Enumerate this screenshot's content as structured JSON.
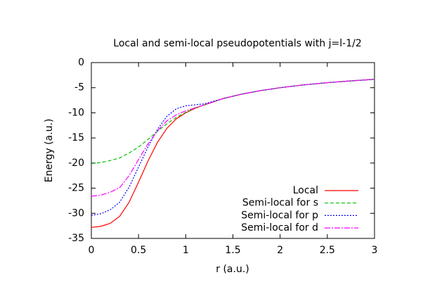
{
  "chart_data": {
    "type": "line",
    "title": "Local and semi-local pseudopotentials with j=l-1/2",
    "x_label": "r (a.u.)",
    "y_label": "Energy (a.u.)",
    "x": [
      0,
      0.1,
      0.2,
      0.3,
      0.4,
      0.5,
      0.6,
      0.7,
      0.8,
      0.9,
      1.0,
      1.1,
      1.2,
      1.4,
      1.6,
      1.8,
      2.0,
      2.25,
      2.5,
      2.75,
      3.0
    ],
    "series": [
      {
        "name": "Local",
        "color": "#ff0000",
        "linestyle": "solid",
        "values": [
          -32.8,
          -32.6,
          -32,
          -30.6,
          -27.8,
          -23.8,
          -19.6,
          -15.9,
          -13.1,
          -11.2,
          -10,
          -9.1,
          -8.4,
          -7.14,
          -6.25,
          -5.56,
          -5,
          -4.44,
          -4,
          -3.64,
          -3.33
        ]
      },
      {
        "name": "Semi-local for s",
        "color": "#00c000",
        "linestyle": "dashed",
        "values": [
          -20.1,
          -19.9,
          -19.5,
          -19,
          -18,
          -16.8,
          -15.3,
          -13.7,
          -12.2,
          -10.9,
          -9.9,
          -9,
          -8.4,
          -7.14,
          -6.25,
          -5.56,
          -5,
          -4.44,
          -4,
          -3.64,
          -3.33
        ]
      },
      {
        "name": "Semi-local for p",
        "color": "#0000ff",
        "linestyle": "dotted",
        "values": [
          -30.4,
          -30.1,
          -29.3,
          -27.8,
          -24.8,
          -20.8,
          -16.8,
          -13.3,
          -10.7,
          -9.2,
          -8.6,
          -8.4,
          -8.2,
          -7.14,
          -6.25,
          -5.56,
          -5,
          -4.44,
          -4,
          -3.64,
          -3.33
        ]
      },
      {
        "name": "Semi-local for d",
        "color": "#ff00ff",
        "linestyle": "dashdot",
        "values": [
          -26.6,
          -26.4,
          -25.8,
          -24.9,
          -22.5,
          -19.3,
          -16.2,
          -13.6,
          -11.6,
          -10.4,
          -9.6,
          -9,
          -8.4,
          -7.14,
          -6.25,
          -5.56,
          -5,
          -4.44,
          -4,
          -3.64,
          -3.33
        ]
      }
    ],
    "xlim": [
      0,
      3
    ],
    "xticks": [
      0,
      0.5,
      1,
      1.5,
      2,
      2.5,
      3
    ],
    "ylim": [
      -35,
      0
    ],
    "yticks": [
      -35,
      -30,
      -25,
      -20,
      -15,
      -10,
      -5,
      0
    ],
    "grid": false,
    "legend": "bottom-right"
  }
}
